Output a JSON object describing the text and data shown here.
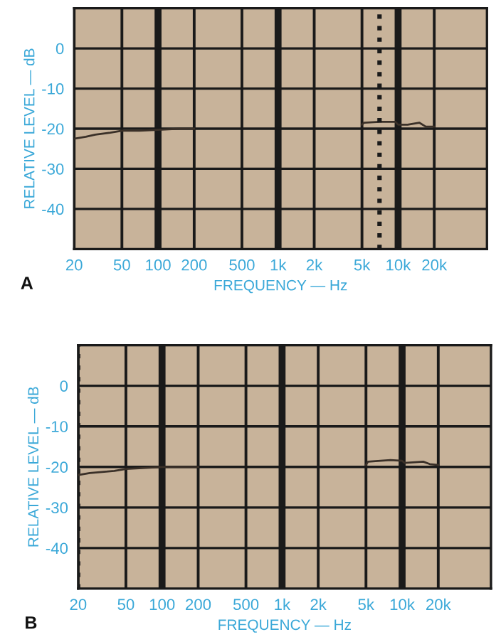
{
  "chart_data": [
    {
      "type": "line",
      "title": "A",
      "xlabel": "FREQUENCY — Hz",
      "ylabel": "RELATIVE LEVEL — dB",
      "x": [
        20,
        25,
        30,
        40,
        50,
        70,
        100,
        150,
        200,
        1000,
        5000,
        5200,
        7000,
        9500,
        10000,
        12000,
        15000,
        17000,
        20000
      ],
      "series": [
        {
          "color": "#3a3028",
          "values": [
            -22.5,
            -22,
            -21.5,
            -21,
            -20.5,
            -20.5,
            -20.3,
            -20,
            -20,
            null,
            -19,
            -18.5,
            -18.3,
            -18.3,
            -19,
            -19,
            -18.5,
            -19.5,
            -19.5
          ]
        }
      ],
      "log": "x",
      "xlim": [
        20,
        55000
      ],
      "ylim": [
        -50,
        10
      ],
      "xticks": [
        20,
        50,
        {
          "value": 100,
          "label": "100"
        },
        200,
        500,
        {
          "value": 1000,
          "label": "1k"
        },
        {
          "value": 2000,
          "label": "2k"
        },
        {
          "value": 5000,
          "label": "5k"
        },
        {
          "value": 10000,
          "label": "10k"
        },
        {
          "value": 20000,
          "label": "20k"
        }
      ],
      "yticks": [
        0,
        {
          "value": -10,
          "label": "-10"
        },
        {
          "value": -20,
          "label": "-20"
        },
        {
          "value": -30,
          "label": "-30"
        },
        {
          "value": -40,
          "label": "-40"
        }
      ],
      "grid": true,
      "legend": false,
      "marker": "none",
      "line_style": "solid",
      "ref_lines": [
        {
          "axis": "x",
          "value": 7000,
          "line_style": "dotted",
          "color": "#1a1a1a"
        }
      ]
    },
    {
      "type": "line",
      "title": "B",
      "xlabel": "FREQUENCY — Hz",
      "ylabel": "RELATIVE LEVEL — dB",
      "x": [
        20,
        25,
        40,
        50,
        100,
        200,
        1000,
        5000,
        5200,
        8000,
        10000,
        10500,
        15000,
        17000,
        20000
      ],
      "series": [
        {
          "color": "#3a3028",
          "values": [
            -22,
            -21.5,
            -21,
            -20.5,
            -20,
            -20,
            null,
            -19.5,
            -18.7,
            -18.3,
            -18.5,
            -19,
            -18.7,
            -19.3,
            -19.5
          ]
        }
      ],
      "log": "x",
      "xlim": [
        20,
        55000
      ],
      "ylim": [
        -50,
        10
      ],
      "xticks": [
        20,
        50,
        {
          "value": 100,
          "label": "100"
        },
        200,
        500,
        {
          "value": 1000,
          "label": "1k"
        },
        {
          "value": 2000,
          "label": "2k"
        },
        {
          "value": 5000,
          "label": "5k"
        },
        {
          "value": 10000,
          "label": "10k"
        },
        {
          "value": 20000,
          "label": "20k"
        }
      ],
      "yticks": [
        0,
        {
          "value": -10,
          "label": "-10"
        },
        {
          "value": -20,
          "label": "-20"
        },
        {
          "value": -30,
          "label": "-30"
        },
        {
          "value": -40,
          "label": "-40"
        }
      ],
      "grid": true,
      "legend": false,
      "marker": "none",
      "line_style": "solid",
      "ref_lines": [
        {
          "axis": "x",
          "value": 20,
          "line_style": "dotted",
          "color": "#1a1a1a"
        }
      ]
    }
  ]
}
